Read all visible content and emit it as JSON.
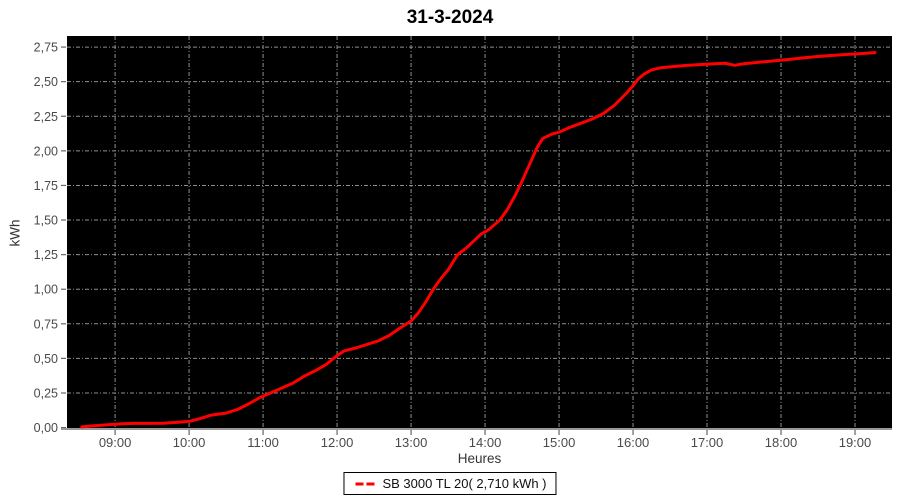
{
  "title": "31-3-2024",
  "axes": {
    "x_label": "Heures",
    "y_label": "kWh"
  },
  "legend": {
    "label": "SB 3000 TL 20( 2,710 kWh )",
    "marker_color": "#ff0000"
  },
  "colors": {
    "plot_bg": "#000000",
    "grid": "#909090",
    "axis_line": "#999999",
    "tick": "#666666",
    "tick_label": "#4a4a4a",
    "series": "#ff0000",
    "page_bg": "#ffffff",
    "title_text": "#000000"
  },
  "chart_data": {
    "type": "line",
    "title": "31-3-2024",
    "xlabel": "Heures",
    "ylabel": "kWh",
    "grid": true,
    "legend_position": "bottom",
    "plot_background": "black",
    "x_axis": {
      "unit": "time-of-day",
      "tick_values": [
        9,
        10,
        11,
        12,
        13,
        14,
        15,
        16,
        17,
        18,
        19
      ],
      "tick_labels": [
        "09:00",
        "10:00",
        "11:00",
        "12:00",
        "13:00",
        "14:00",
        "15:00",
        "16:00",
        "17:00",
        "18:00",
        "19:00"
      ],
      "range_hours": [
        8.35,
        19.5
      ]
    },
    "y_axis": {
      "unit": "kWh",
      "tick_values": [
        0,
        0.25,
        0.5,
        0.75,
        1.0,
        1.25,
        1.5,
        1.75,
        2.0,
        2.25,
        2.5,
        2.75
      ],
      "tick_labels": [
        "0,00",
        "0,25",
        "0,50",
        "0,75",
        "1,00",
        "1,25",
        "1,50",
        "1,75",
        "2,00",
        "2,25",
        "2,50",
        "2,75"
      ],
      "range": [
        -0.003,
        2.83
      ]
    },
    "series": [
      {
        "name": "SB 3000 TL 20",
        "legend_label": "SB 3000 TL 20( 2,710 kWh )",
        "daily_total_kwh": 2.71,
        "color": "#ff0000",
        "points_time_kwh": [
          [
            8.55,
            0.005
          ],
          [
            8.7,
            0.012
          ],
          [
            8.9,
            0.02
          ],
          [
            9.1,
            0.027
          ],
          [
            9.25,
            0.03
          ],
          [
            9.45,
            0.03
          ],
          [
            9.65,
            0.032
          ],
          [
            9.85,
            0.038
          ],
          [
            10.0,
            0.045
          ],
          [
            10.15,
            0.065
          ],
          [
            10.3,
            0.09
          ],
          [
            10.5,
            0.105
          ],
          [
            10.65,
            0.13
          ],
          [
            10.8,
            0.17
          ],
          [
            10.95,
            0.215
          ],
          [
            11.1,
            0.25
          ],
          [
            11.25,
            0.285
          ],
          [
            11.4,
            0.32
          ],
          [
            11.55,
            0.37
          ],
          [
            11.7,
            0.41
          ],
          [
            11.85,
            0.455
          ],
          [
            12.0,
            0.52
          ],
          [
            12.1,
            0.555
          ],
          [
            12.25,
            0.575
          ],
          [
            12.4,
            0.6
          ],
          [
            12.55,
            0.625
          ],
          [
            12.7,
            0.665
          ],
          [
            12.85,
            0.72
          ],
          [
            13.0,
            0.77
          ],
          [
            13.1,
            0.83
          ],
          [
            13.2,
            0.91
          ],
          [
            13.3,
            1.0
          ],
          [
            13.4,
            1.075
          ],
          [
            13.5,
            1.14
          ],
          [
            13.63,
            1.25
          ],
          [
            13.75,
            1.3
          ],
          [
            13.85,
            1.35
          ],
          [
            13.95,
            1.4
          ],
          [
            14.05,
            1.43
          ],
          [
            14.2,
            1.5
          ],
          [
            14.3,
            1.575
          ],
          [
            14.4,
            1.67
          ],
          [
            14.5,
            1.78
          ],
          [
            14.6,
            1.9
          ],
          [
            14.7,
            2.02
          ],
          [
            14.78,
            2.09
          ],
          [
            14.9,
            2.12
          ],
          [
            15.0,
            2.135
          ],
          [
            15.15,
            2.17
          ],
          [
            15.3,
            2.2
          ],
          [
            15.45,
            2.23
          ],
          [
            15.6,
            2.27
          ],
          [
            15.75,
            2.33
          ],
          [
            15.9,
            2.41
          ],
          [
            16.0,
            2.47
          ],
          [
            16.07,
            2.52
          ],
          [
            16.15,
            2.555
          ],
          [
            16.25,
            2.585
          ],
          [
            16.37,
            2.6
          ],
          [
            16.5,
            2.607
          ],
          [
            16.7,
            2.617
          ],
          [
            16.9,
            2.623
          ],
          [
            17.1,
            2.63
          ],
          [
            17.25,
            2.633
          ],
          [
            17.37,
            2.618
          ],
          [
            17.5,
            2.63
          ],
          [
            17.7,
            2.64
          ],
          [
            17.9,
            2.65
          ],
          [
            18.1,
            2.66
          ],
          [
            18.3,
            2.672
          ],
          [
            18.5,
            2.682
          ],
          [
            18.7,
            2.69
          ],
          [
            18.9,
            2.697
          ],
          [
            19.05,
            2.702
          ],
          [
            19.27,
            2.71
          ]
        ]
      }
    ]
  }
}
